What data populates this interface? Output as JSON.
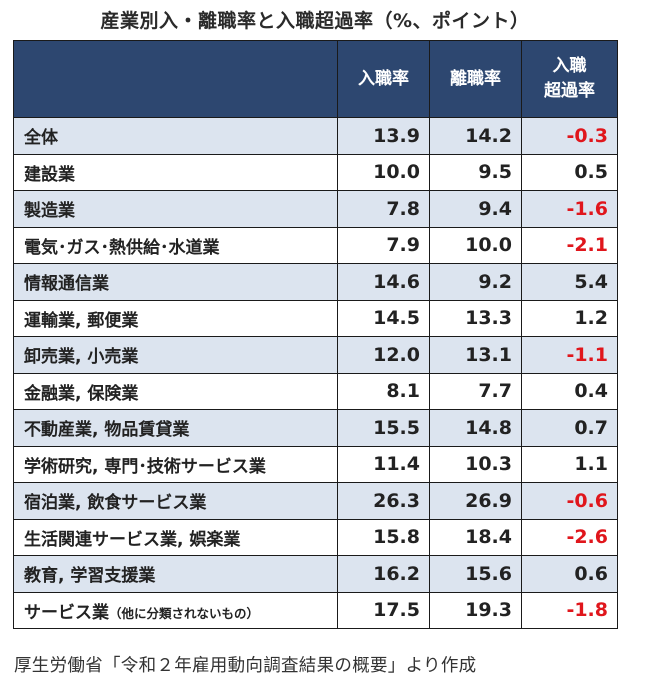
{
  "title": "産業別入・離職率と入職超過率（%、ポイント）",
  "source": "厚生労働省「令和２年雇用動向調査結果の概要」より作成",
  "colors": {
    "header_bg": "#2d4770",
    "row_shade": "#dce4ef",
    "negative": "#e0161c"
  },
  "chart_data": {
    "type": "table",
    "title": "産業別入・離職率と入職超過率（%、ポイント）",
    "columns": [
      "入職率",
      "離職率",
      "入職\n超過率"
    ],
    "rows": [
      {
        "industry": "全体",
        "note": "",
        "entry": "13.9",
        "exit": "14.2",
        "excess": "-0.3"
      },
      {
        "industry": "建設業",
        "note": "",
        "entry": "10.0",
        "exit": "9.5",
        "excess": "0.5"
      },
      {
        "industry": "製造業",
        "note": "",
        "entry": "7.8",
        "exit": "9.4",
        "excess": "-1.6"
      },
      {
        "industry": "電気･ガス･熱供給･水道業",
        "note": "",
        "entry": "7.9",
        "exit": "10.0",
        "excess": "-2.1"
      },
      {
        "industry": "情報通信業",
        "note": "",
        "entry": "14.6",
        "exit": "9.2",
        "excess": "5.4"
      },
      {
        "industry": "運輸業, 郵便業",
        "note": "",
        "entry": "14.5",
        "exit": "13.3",
        "excess": "1.2"
      },
      {
        "industry": "卸売業, 小売業",
        "note": "",
        "entry": "12.0",
        "exit": "13.1",
        "excess": "-1.1"
      },
      {
        "industry": "金融業, 保険業",
        "note": "",
        "entry": "8.1",
        "exit": "7.7",
        "excess": "0.4"
      },
      {
        "industry": "不動産業, 物品賃貸業",
        "note": "",
        "entry": "15.5",
        "exit": "14.8",
        "excess": "0.7"
      },
      {
        "industry": "学術研究, 専門･技術サービス業",
        "note": "",
        "entry": "11.4",
        "exit": "10.3",
        "excess": "1.1"
      },
      {
        "industry": "宿泊業, 飲食サービス業",
        "note": "",
        "entry": "26.3",
        "exit": "26.9",
        "excess": "-0.6"
      },
      {
        "industry": "生活関連サービス業, 娯楽業",
        "note": "",
        "entry": "15.8",
        "exit": "18.4",
        "excess": "-2.6"
      },
      {
        "industry": "教育, 学習支援業",
        "note": "",
        "entry": "16.2",
        "exit": "15.6",
        "excess": "0.6"
      },
      {
        "industry": "サービス業",
        "note": "（他に分類されないもの）",
        "entry": "17.5",
        "exit": "19.3",
        "excess": "-1.8"
      }
    ]
  }
}
